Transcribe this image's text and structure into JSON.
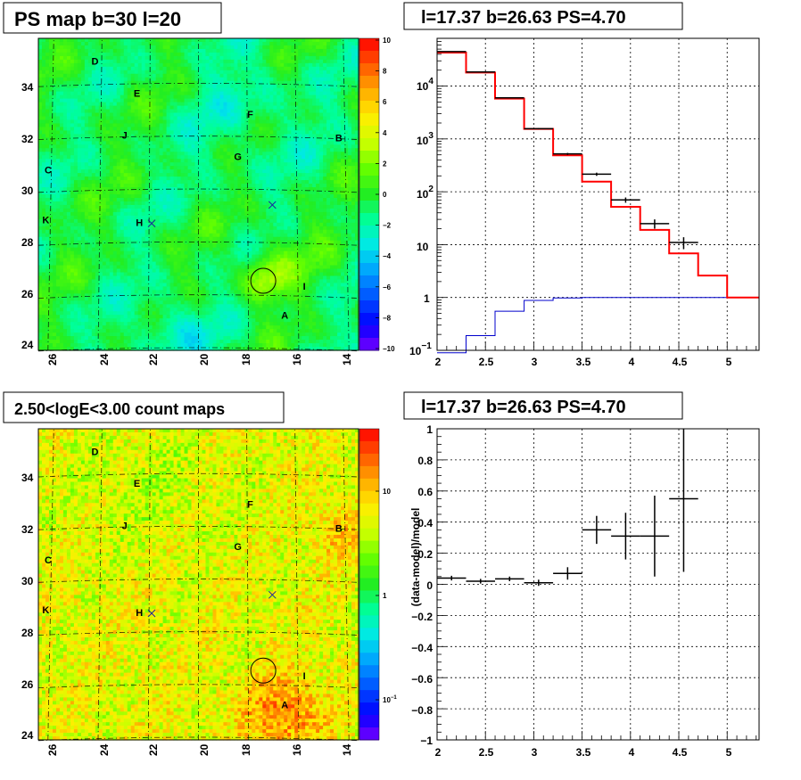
{
  "panels": {
    "ps_map": {
      "title": "PS map b=30 l=20",
      "x_ticks": [
        "26",
        "24",
        "22",
        "20",
        "18",
        "16",
        "14"
      ],
      "y_ticks": [
        "34",
        "32",
        "30",
        "28",
        "26",
        "24"
      ],
      "colorbar_ticks": [
        "10",
        "8",
        "6",
        "4",
        "2",
        "0",
        "−2",
        "−4",
        "−6",
        "−8",
        "−10"
      ],
      "source_labels": [
        "A",
        "B",
        "C",
        "D",
        "E",
        "F",
        "G",
        "H",
        "I",
        "J",
        "K"
      ]
    },
    "spectrum": {
      "title": "l=17.37 b=26.63 PS=4.70",
      "x_ticks": [
        "2",
        "2.5",
        "3",
        "3.5",
        "4",
        "4.5",
        "5"
      ],
      "y_ticks": [
        {
          "base": "10",
          "exp": "4"
        },
        {
          "base": "10",
          "exp": "3"
        },
        {
          "base": "10",
          "exp": "2"
        },
        {
          "base": "10",
          "exp": ""
        },
        {
          "base": "1",
          "exp": ""
        },
        {
          "base": "10",
          "exp": "−1"
        }
      ]
    },
    "count_map": {
      "title": "2.50<logE<3.00 count maps",
      "x_ticks": [
        "26",
        "24",
        "22",
        "20",
        "18",
        "16",
        "14"
      ],
      "y_ticks": [
        "34",
        "32",
        "30",
        "28",
        "26",
        "24"
      ],
      "colorbar_ticks": [
        {
          "base": "10",
          "exp": ""
        },
        {
          "base": "1",
          "exp": ""
        },
        {
          "base": "10",
          "exp": "−1"
        }
      ],
      "source_labels": [
        "A",
        "B",
        "C",
        "D",
        "E",
        "F",
        "G",
        "H",
        "I",
        "J",
        "K"
      ]
    },
    "residual": {
      "title": "l=17.37 b=26.63 PS=4.70",
      "ylabel": "(data-model)/model",
      "x_ticks": [
        "2",
        "2.5",
        "3",
        "3.5",
        "4",
        "4.5",
        "5"
      ],
      "y_ticks": [
        "1",
        "0.8",
        "0.6",
        "0.4",
        "0.2",
        "0",
        "−0.2",
        "−0.4",
        "−0.6",
        "−0.8",
        "−1"
      ]
    }
  },
  "chart_data": [
    {
      "type": "heatmap",
      "title": "PS map b=30 l=20",
      "xlim": [
        26.5,
        13.5
      ],
      "ylim": [
        24,
        35.8
      ],
      "colorbar_range": [
        -10,
        10
      ],
      "colormap": [
        "#7a00ff",
        "#0000ff",
        "#0050ff",
        "#00a0ff",
        "#00e8e8",
        "#00ff99",
        "#22ee22",
        "#66ff00",
        "#ccff00",
        "#ffee00",
        "#ffaa00",
        "#ff5500",
        "#ff0000"
      ],
      "sources": [
        {
          "label": "A",
          "l": 16.5,
          "b": 25.2
        },
        {
          "label": "B",
          "l": 14.3,
          "b": 31.9
        },
        {
          "label": "C",
          "l": 26.1,
          "b": 30.7
        },
        {
          "label": "D",
          "l": 24.2,
          "b": 34.8
        },
        {
          "label": "E",
          "l": 22.5,
          "b": 33.6
        },
        {
          "label": "F",
          "l": 17.9,
          "b": 32.8
        },
        {
          "label": "G",
          "l": 18.4,
          "b": 31.2
        },
        {
          "label": "H",
          "l": 22.4,
          "b": 28.7
        },
        {
          "label": "I",
          "l": 15.7,
          "b": 26.3
        },
        {
          "label": "J",
          "l": 23.0,
          "b": 32.0
        },
        {
          "label": "K",
          "l": 26.2,
          "b": 28.8
        }
      ],
      "markers": [
        {
          "shape": "cross",
          "l": 17.0,
          "b": 29.5
        },
        {
          "shape": "cross",
          "l": 21.9,
          "b": 28.8
        },
        {
          "shape": "circle",
          "l": 17.37,
          "b": 26.63
        }
      ]
    },
    {
      "type": "line",
      "title": "l=17.37 b=26.63 PS=4.70",
      "xlim": [
        2,
        5.33
      ],
      "ylim": [
        0.1,
        80000
      ],
      "yscale": "log",
      "grid": true,
      "series": [
        {
          "color": "#ff0000",
          "kind": "step",
          "bin_edges": [
            2.0,
            2.3,
            2.6,
            2.9,
            3.2,
            3.5,
            3.8,
            4.1,
            4.4,
            4.7,
            5.0,
            5.33
          ],
          "values": [
            43000,
            18000,
            5800,
            1550,
            490,
            155,
            52,
            19,
            6.8,
            2.6,
            1.0
          ]
        },
        {
          "color": "#000000",
          "kind": "errorbar",
          "x": [
            2.15,
            2.45,
            2.75,
            3.05,
            3.35,
            3.65,
            3.95,
            4.25,
            4.55
          ],
          "xerr": 0.15,
          "y": [
            45000,
            18500,
            6000,
            1560,
            520,
            215,
            70,
            25,
            11
          ],
          "yerr": [
            200,
            130,
            75,
            40,
            23,
            15,
            8,
            5,
            2.8
          ]
        },
        {
          "color": "#0000cc",
          "kind": "step",
          "bin_edges": [
            2.0,
            2.3,
            2.6,
            2.9,
            3.2,
            3.5,
            3.8,
            4.1,
            4.4,
            4.7,
            5.0,
            5.33
          ],
          "values": [
            0.09,
            0.19,
            0.55,
            0.88,
            0.98,
            1.0,
            1.0,
            1.0,
            1.0,
            1.0,
            1.0
          ]
        }
      ]
    },
    {
      "type": "heatmap",
      "title": "2.50<logE<3.00 count maps",
      "xlim": [
        26.5,
        13.5
      ],
      "ylim": [
        24,
        35.8
      ],
      "colorbar_scale": "log",
      "colorbar_range": [
        0.05,
        25
      ],
      "colormap": [
        "#7a00ff",
        "#0000ff",
        "#0050ff",
        "#00a0ff",
        "#00e8e8",
        "#00ff99",
        "#22ee22",
        "#66ff00",
        "#ccff00",
        "#ffee00",
        "#ffaa00",
        "#ff5500",
        "#ff0000"
      ],
      "sources": [
        {
          "label": "A",
          "l": 16.5,
          "b": 25.2
        },
        {
          "label": "B",
          "l": 14.3,
          "b": 31.9
        },
        {
          "label": "C",
          "l": 26.1,
          "b": 30.7
        },
        {
          "label": "D",
          "l": 24.2,
          "b": 34.8
        },
        {
          "label": "E",
          "l": 22.5,
          "b": 33.6
        },
        {
          "label": "F",
          "l": 17.9,
          "b": 32.8
        },
        {
          "label": "G",
          "l": 18.4,
          "b": 31.2
        },
        {
          "label": "H",
          "l": 22.4,
          "b": 28.7
        },
        {
          "label": "I",
          "l": 15.7,
          "b": 26.3
        },
        {
          "label": "J",
          "l": 23.0,
          "b": 32.0
        },
        {
          "label": "K",
          "l": 26.2,
          "b": 28.8
        }
      ],
      "markers": [
        {
          "shape": "cross",
          "l": 17.0,
          "b": 29.5
        },
        {
          "shape": "cross",
          "l": 21.9,
          "b": 28.8
        },
        {
          "shape": "circle",
          "l": 17.37,
          "b": 26.63
        }
      ]
    },
    {
      "type": "scatter",
      "title": "l=17.37 b=26.63 PS=4.70",
      "ylabel": "(data-model)/model",
      "xlim": [
        2,
        5.33
      ],
      "ylim": [
        -1,
        1
      ],
      "grid": true,
      "series": [
        {
          "color": "#000000",
          "kind": "errorbar",
          "x": [
            2.15,
            2.45,
            2.75,
            3.05,
            3.35,
            3.65,
            3.95,
            4.25,
            4.55
          ],
          "xerr": 0.15,
          "y": [
            0.04,
            0.02,
            0.035,
            0.01,
            0.07,
            0.35,
            0.31,
            0.31,
            0.55
          ],
          "yerr": [
            0.015,
            0.015,
            0.015,
            0.02,
            0.04,
            0.09,
            0.15,
            0.26,
            0.47
          ]
        }
      ]
    }
  ]
}
